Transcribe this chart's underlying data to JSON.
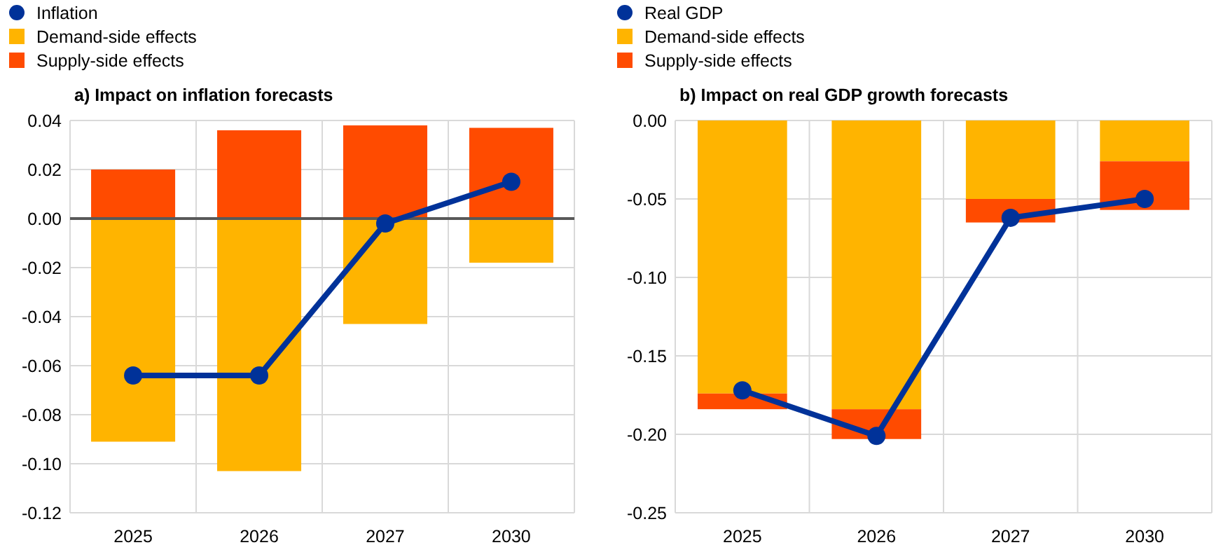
{
  "chart_data": [
    {
      "type": "bar",
      "title": "a) Impact on inflation forecasts",
      "categories": [
        "2025",
        "2026",
        "2027",
        "2030"
      ],
      "stacked": true,
      "series": [
        {
          "name": "Inflation",
          "type": "line",
          "color": "#003299",
          "values": [
            -0.064,
            -0.064,
            -0.002,
            0.015
          ]
        },
        {
          "name": "Demand-side effects",
          "color": "#ffb400",
          "values": [
            -0.091,
            -0.103,
            -0.043,
            -0.018
          ]
        },
        {
          "name": "Supply-side effects",
          "color": "#ff4b00",
          "values": [
            0.02,
            0.036,
            0.038,
            0.037
          ]
        }
      ],
      "ylim": [
        -0.12,
        0.04
      ],
      "yticks": [
        {
          "value": -0.12,
          "label": "-0.12"
        },
        {
          "value": -0.1,
          "label": "-0.10"
        },
        {
          "value": -0.08,
          "label": "-0.08"
        },
        {
          "value": -0.06,
          "label": "-0.06"
        },
        {
          "value": -0.04,
          "label": "-0.04"
        },
        {
          "value": -0.02,
          "label": "-0.02"
        },
        {
          "value": 0,
          "label": "0.00"
        },
        {
          "value": 0.02,
          "label": "0.02"
        },
        {
          "value": 0.04,
          "label": "0.04"
        }
      ],
      "grid": true,
      "legend": "top left",
      "marker": "circle"
    },
    {
      "type": "bar",
      "title": "b) Impact on real GDP growth forecasts",
      "categories": [
        "2025",
        "2026",
        "2027",
        "2030"
      ],
      "stacked": true,
      "series": [
        {
          "name": "Real GDP",
          "type": "line",
          "color": "#003299",
          "values": [
            -0.172,
            -0.201,
            -0.062,
            -0.05
          ]
        },
        {
          "name": "Demand-side effects",
          "color": "#ffb400",
          "values": [
            -0.174,
            -0.184,
            -0.05,
            -0.026
          ]
        },
        {
          "name": "Supply-side effects",
          "color": "#ff4b00",
          "values": [
            -0.01,
            -0.019,
            -0.015,
            -0.031
          ]
        }
      ],
      "ylim": [
        -0.25,
        0
      ],
      "yticks": [
        {
          "value": -0.25,
          "label": "-0.25"
        },
        {
          "value": -0.2,
          "label": "-0.20"
        },
        {
          "value": -0.15,
          "label": "-0.15"
        },
        {
          "value": -0.1,
          "label": "-0.10"
        },
        {
          "value": -0.05,
          "label": "-0.05"
        },
        {
          "value": 0,
          "label": "0.00"
        }
      ],
      "grid": true,
      "legend": "top left",
      "marker": "circle"
    }
  ]
}
